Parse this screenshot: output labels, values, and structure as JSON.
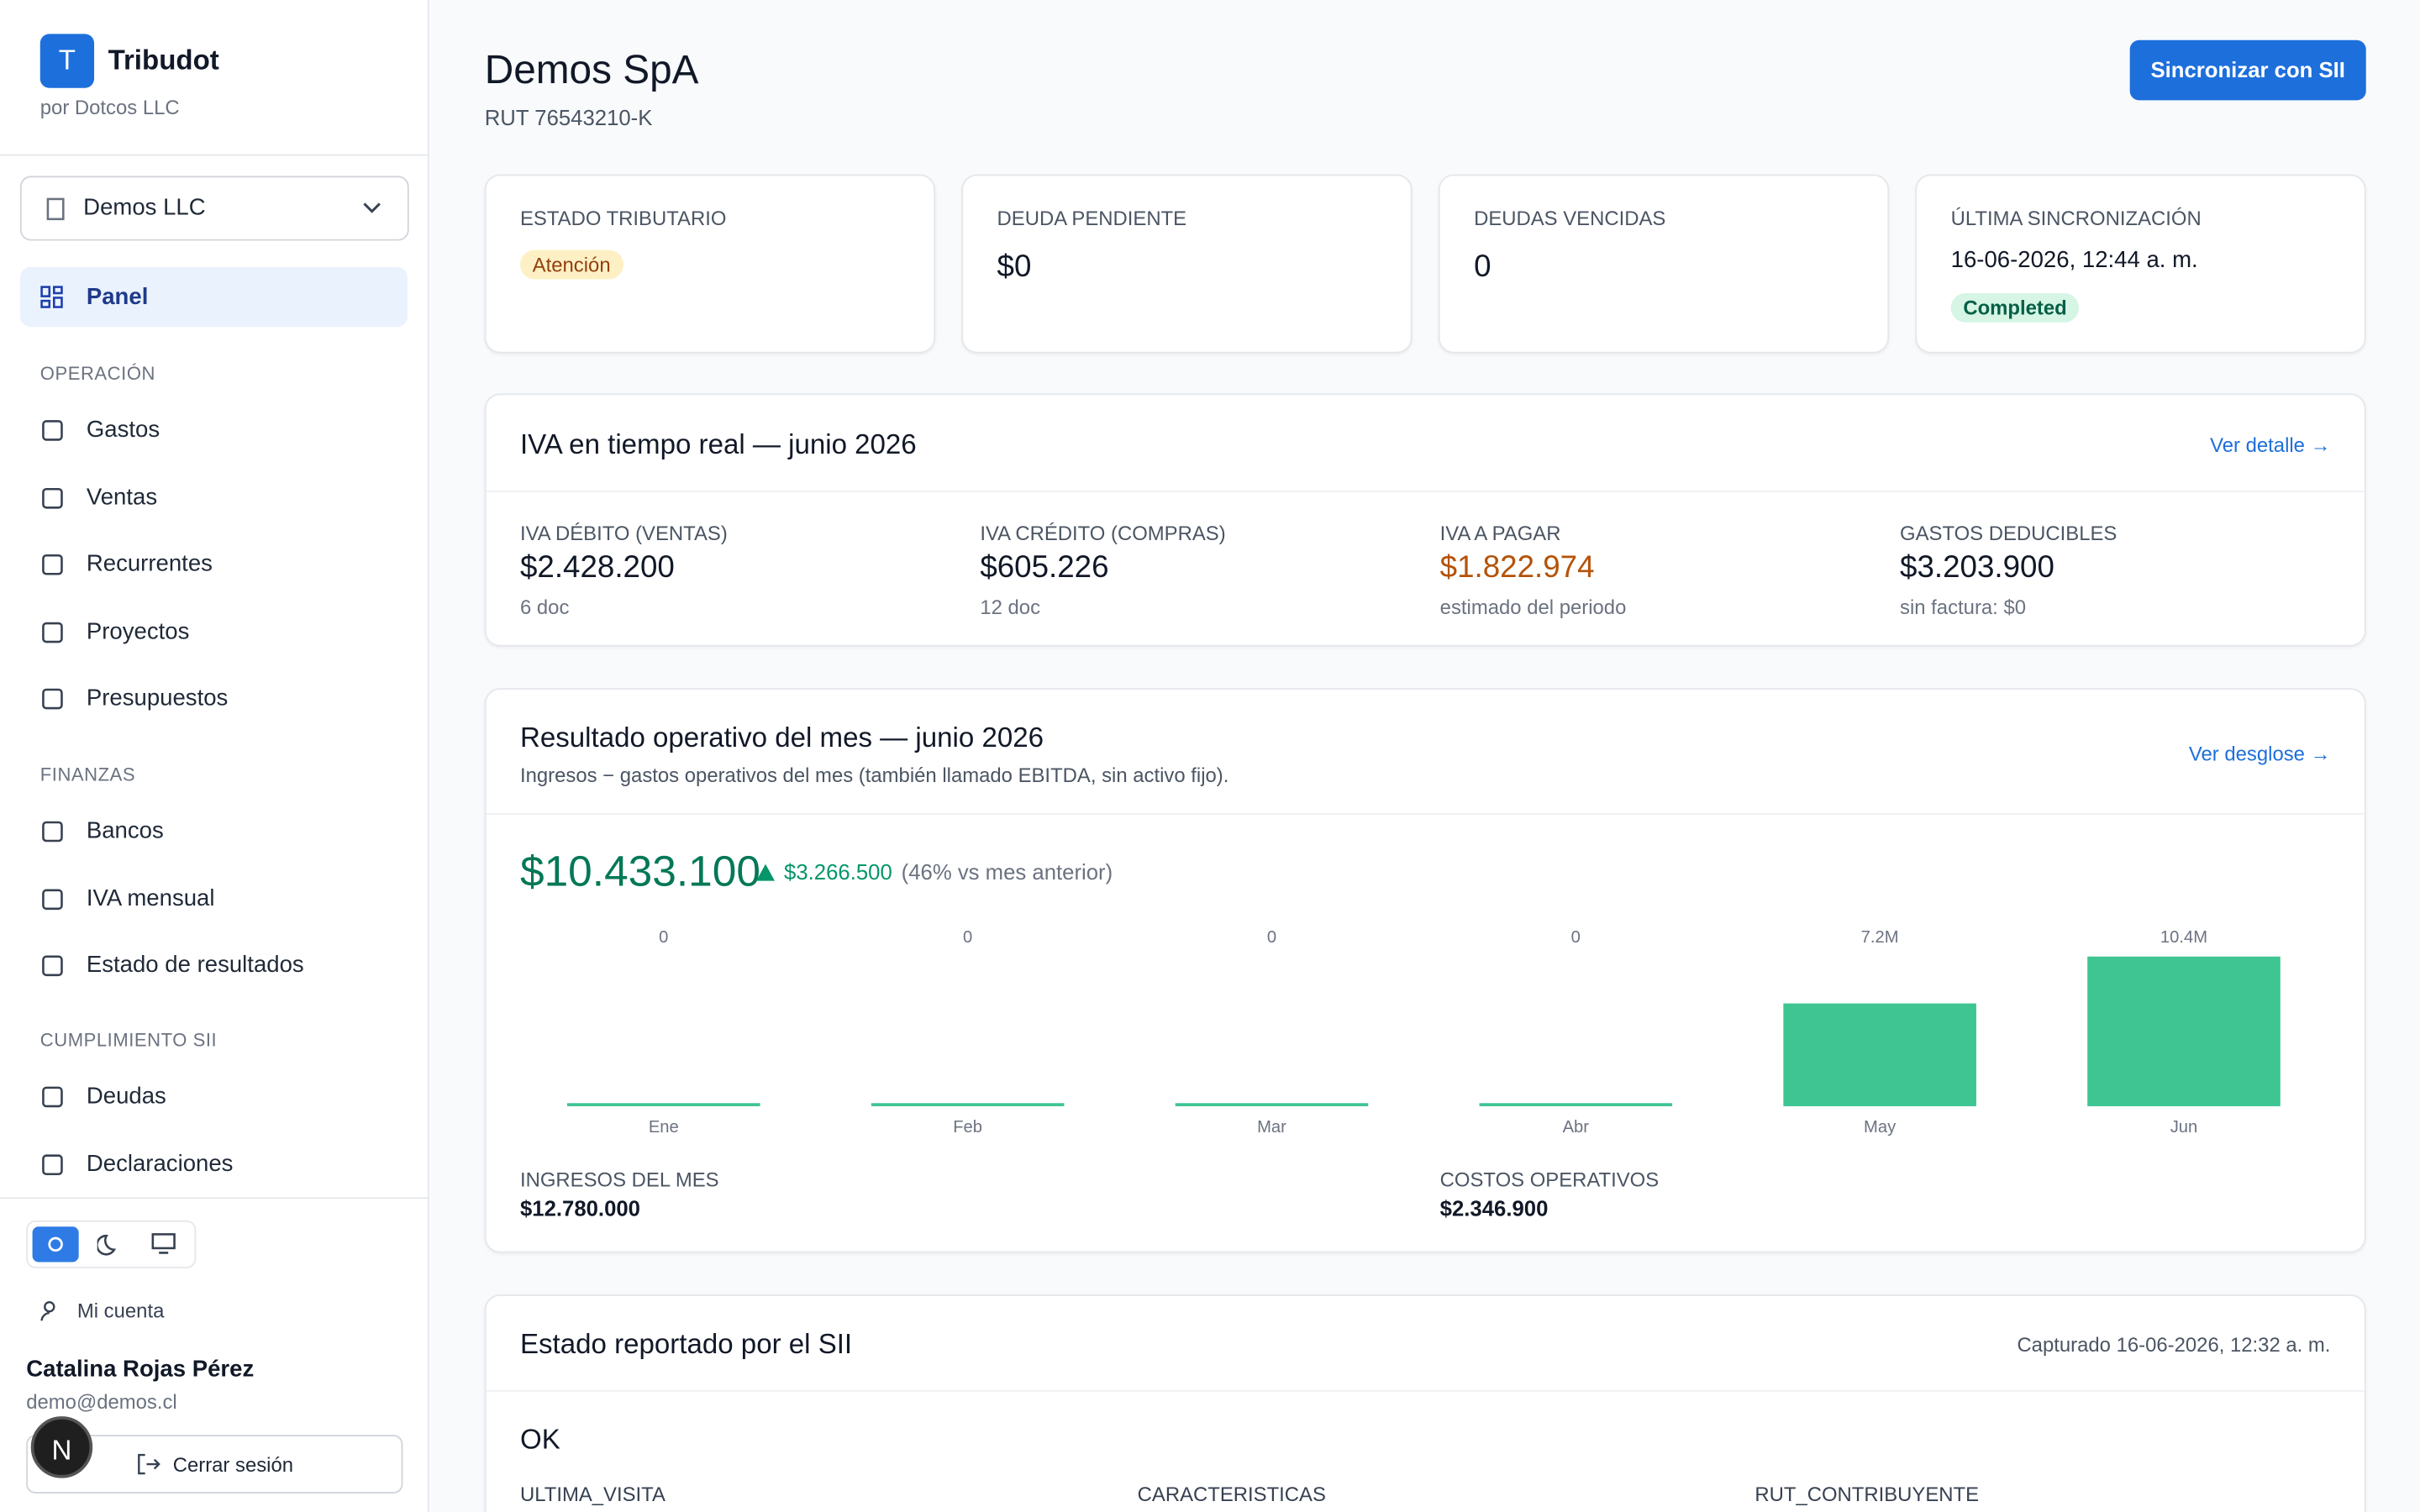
{
  "sidebar": {
    "brand": {
      "logo": "T",
      "name": "Tribudot",
      "by": "por Dotcos LLC"
    },
    "company": "Demos LLC",
    "panel": "Panel",
    "sections": [
      {
        "title": "OPERACIÓN",
        "items": [
          "Gastos",
          "Ventas",
          "Recurrentes",
          "Proyectos",
          "Presupuestos"
        ]
      },
      {
        "title": "FINANZAS",
        "items": [
          "Bancos",
          "IVA mensual",
          "Estado de resultados"
        ]
      },
      {
        "title": "CUMPLIMIENTO SII",
        "items": [
          "Deudas",
          "Declaraciones"
        ]
      }
    ],
    "account": "Mi cuenta",
    "user": {
      "name": "Catalina Rojas Pérez",
      "email": "demo@demos.cl"
    },
    "logout": "Cerrar sesión",
    "badge": "N"
  },
  "header": {
    "title": "Demos SpA",
    "rut": "RUT 76543210-K",
    "sync_button": "Sincronizar con SII"
  },
  "stats": [
    {
      "label": "ESTADO TRIBUTARIO",
      "badge": "Atención"
    },
    {
      "label": "DEUDA PENDIENTE",
      "value": "$0"
    },
    {
      "label": "DEUDAS VENCIDAS",
      "value": "0"
    },
    {
      "label": "ÚLTIMA SINCRONIZACIÓN",
      "value": "16-06-2026, 12:44 a. m.",
      "badge": "Completed"
    }
  ],
  "iva": {
    "title": "IVA en tiempo real — junio 2026",
    "link": "Ver detalle →",
    "items": [
      {
        "label": "IVA DÉBITO (VENTAS)",
        "value": "$2.428.200",
        "note": "6 doc"
      },
      {
        "label": "IVA CRÉDITO (COMPRAS)",
        "value": "$605.226",
        "note": "12 doc"
      },
      {
        "label": "IVA A PAGAR",
        "value": "$1.822.974",
        "note": "estimado del periodo"
      },
      {
        "label": "GASTOS DEDUCIBLES",
        "value": "$3.203.900",
        "note": "sin factura: $0"
      }
    ]
  },
  "resultado": {
    "title": "Resultado operativo del mes — junio 2026",
    "subtitle": "Ingresos − gastos operativos del mes (también llamado EBITDA, sin activo fijo).",
    "link": "Ver desglose →",
    "total": "$10.433.100",
    "change": "$3.266.500",
    "change_note": "(46% vs mes anterior)",
    "footer": [
      {
        "label": "INGRESOS DEL MES",
        "value": "$12.780.000"
      },
      {
        "label": "COSTOS OPERATIVOS",
        "value": "$2.346.900"
      }
    ]
  },
  "chart_data": {
    "type": "bar",
    "categories": [
      "Ene",
      "Feb",
      "Mar",
      "Abr",
      "May",
      "Jun"
    ],
    "values": [
      0,
      0,
      0,
      0,
      7166600,
      10433100
    ],
    "value_labels": [
      "0",
      "0",
      "0",
      "0",
      "7.2M",
      "10.4M"
    ],
    "color": "#3ec592"
  },
  "sii": {
    "title": "Estado reportado por el SII",
    "captured": "Capturado 16-06-2026, 12:32 a. m.",
    "status": "OK",
    "columns": [
      "ULTIMA_VISITA",
      "CARACTERISTICAS",
      "RUT_CONTRIBUYENTE"
    ]
  }
}
